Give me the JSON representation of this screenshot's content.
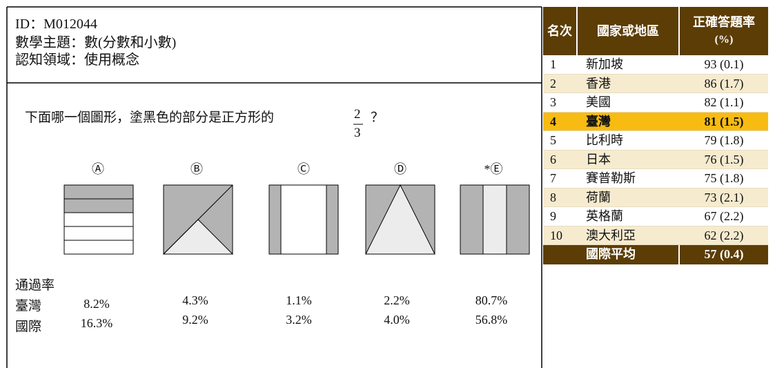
{
  "item": {
    "id": "ID：M012044",
    "topic": "數學主題：數(分數和小數)",
    "domain": "認知領域：使用概念"
  },
  "question": {
    "text": "下面哪一個圖形，塗黑色的部分是正方形的",
    "fraction": {
      "numerator": "2",
      "denominator": "3"
    },
    "end": "？"
  },
  "options": [
    "Ⓐ",
    "Ⓑ",
    "Ⓒ",
    "Ⓓ",
    "*Ⓔ"
  ],
  "pass_rates": {
    "title": "通過率",
    "rows": [
      {
        "label": "臺灣",
        "values": [
          "8.2%",
          "4.3%",
          "1.1%",
          "2.2%",
          "80.7%"
        ]
      },
      {
        "label": "國際",
        "values": [
          "16.3%",
          "9.2%",
          "3.2%",
          "4.0%",
          "56.8%"
        ]
      }
    ]
  },
  "table": {
    "headers": [
      "名次",
      "國家或地區",
      "正確答題率",
      "(%)"
    ],
    "rows": [
      [
        "1",
        "新加坡",
        "93 (0.1)"
      ],
      [
        "2",
        "香港",
        "86 (1.7)"
      ],
      [
        "3",
        "美國",
        "82 (1.1)"
      ],
      [
        "4",
        "臺灣",
        "81 (1.5)"
      ],
      [
        "5",
        "比利時",
        "79 (1.8)"
      ],
      [
        "6",
        "日本",
        "76 (1.5)"
      ],
      [
        "7",
        "賽普勒斯",
        "75 (1.8)"
      ],
      [
        "8",
        "荷蘭",
        "73 (2.1)"
      ],
      [
        "9",
        "英格蘭",
        "67 (2.2)"
      ],
      [
        "10",
        "澳大利亞",
        "62 (2.2)"
      ]
    ],
    "footer": [
      "國際平均",
      "57 (0.4)"
    ]
  }
}
